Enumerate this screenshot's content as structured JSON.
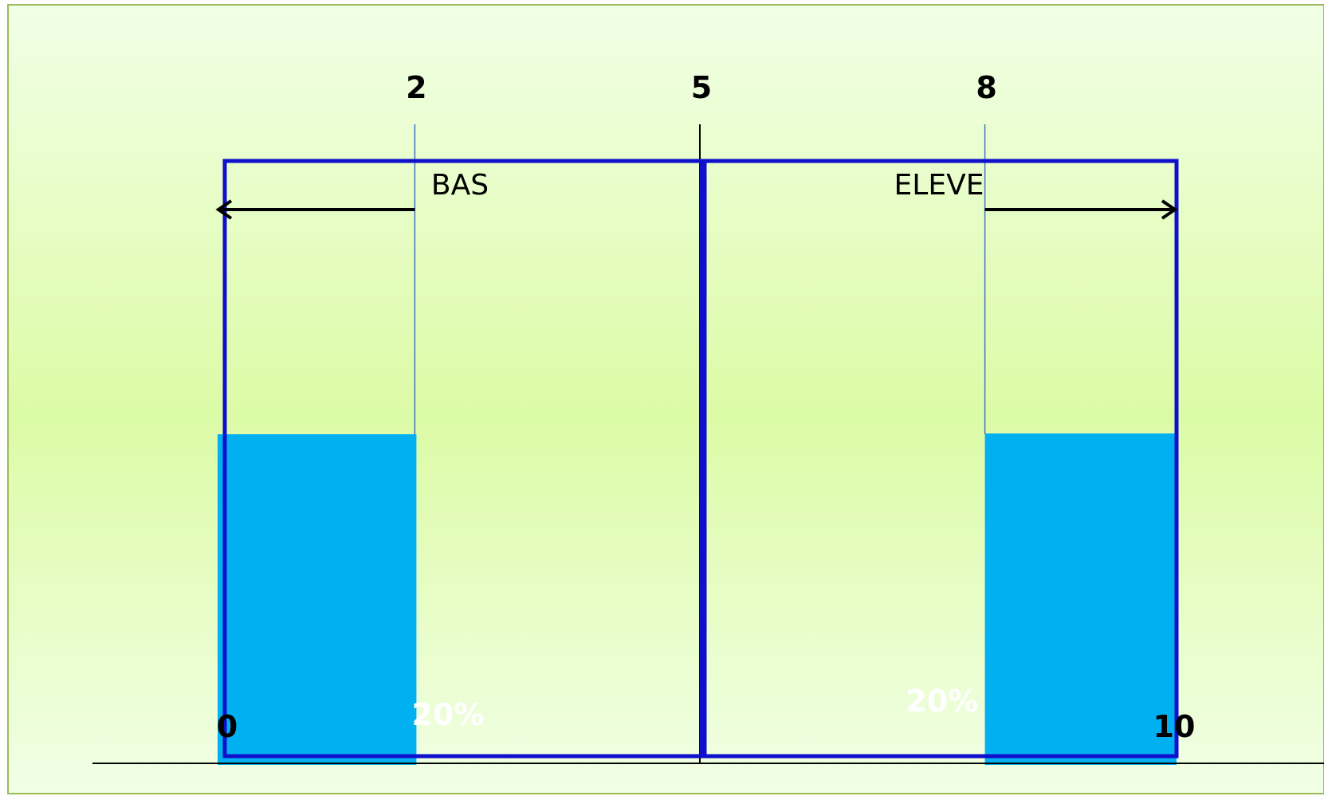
{
  "scale": {
    "ticks": [
      {
        "value": 0,
        "label": "0"
      },
      {
        "value": 2,
        "label": "2"
      },
      {
        "value": 5,
        "label": "5"
      },
      {
        "value": 8,
        "label": "8"
      },
      {
        "value": 10,
        "label": "10"
      }
    ]
  },
  "zones": [
    {
      "id": "bas",
      "label": "BAS",
      "from": 0,
      "to": 2,
      "direction": "left",
      "percent_label": "20%"
    },
    {
      "id": "eleve",
      "label": "ELEVE",
      "from": 8,
      "to": 10,
      "direction": "right",
      "percent_label": "20%"
    }
  ],
  "colors": {
    "background_top": "#f1ffe6",
    "background_mid": "#dcfba6",
    "fill": "#00b0f0",
    "frame": "#1010cc",
    "border": "#9bbb59",
    "axis": "#000000",
    "divider": "#4472c4"
  }
}
